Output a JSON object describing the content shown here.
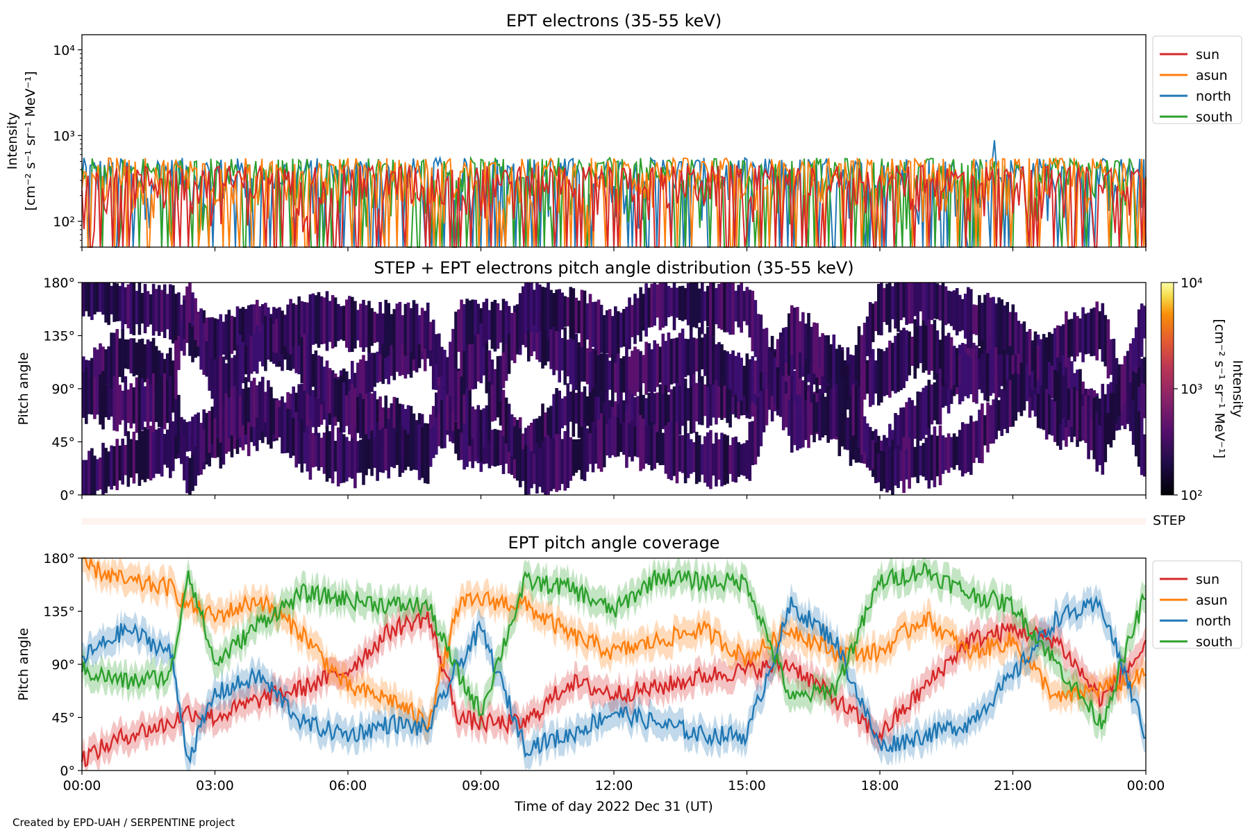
{
  "footer": "Created by EPD-UAH / SERPENTINE project",
  "xaxis": {
    "label": "Time of day 2022 Dec 31 (UT)",
    "ticks": [
      "00:00",
      "03:00",
      "06:00",
      "09:00",
      "12:00",
      "15:00",
      "18:00",
      "21:00",
      "00:00"
    ],
    "range_hours": [
      0,
      24
    ]
  },
  "chart_data": [
    {
      "type": "line",
      "title": "EPT electrons (35-55 keV)",
      "ylabel_line1": "Intensity",
      "ylabel_line2": "[cm⁻² s⁻¹ sr⁻¹ MeV⁻¹]",
      "yscale": "log",
      "ylim": [
        50,
        15000
      ],
      "yticks": [
        "10²",
        "10³",
        "10⁴"
      ],
      "legend": "top-right outside",
      "series": [
        {
          "name": "sun",
          "color": "#d62728",
          "typical_range": [
            50,
            450
          ]
        },
        {
          "name": "asun",
          "color": "#ff7f0e",
          "typical_range": [
            50,
            550
          ]
        },
        {
          "name": "north",
          "color": "#1f77b4",
          "typical_range": [
            50,
            550
          ]
        },
        {
          "name": "south",
          "color": "#2ca02c",
          "typical_range": [
            50,
            550
          ]
        }
      ],
      "peaks": [
        {
          "series": "north",
          "x_hours": 20.6,
          "y": 880
        }
      ]
    },
    {
      "type": "heatmap",
      "title": "STEP + EPT electrons pitch angle distribution (35-55 keV)",
      "ylabel": "Pitch angle",
      "ylim": [
        0,
        180
      ],
      "yticks": [
        "0°",
        "45°",
        "90°",
        "135°",
        "180°"
      ],
      "colorbar": {
        "label_line1": "Intensity",
        "label_line2": "[cm⁻² s⁻¹ sr⁻¹ MeV⁻¹]",
        "scale": "log",
        "range": [
          100,
          10000
        ],
        "ticks": [
          "10²",
          "10³",
          "10⁴"
        ],
        "colormap": "inferno"
      }
    },
    {
      "type": "heatmap",
      "title": "",
      "label": "STEP",
      "empty": true
    },
    {
      "type": "line",
      "title": "EPT pitch angle coverage",
      "ylabel": "Pitch angle",
      "ylim": [
        0,
        180
      ],
      "yticks": [
        "0°",
        "45°",
        "90°",
        "135°",
        "180°"
      ],
      "legend": "top-right outside",
      "series": [
        {
          "name": "sun",
          "color": "#d62728",
          "x": [
            0,
            1,
            2,
            2.4,
            3,
            4,
            5,
            6,
            7,
            7.8,
            8.5,
            9,
            10,
            11,
            12,
            13,
            14,
            15,
            16,
            17,
            18,
            19,
            20,
            21,
            22,
            23,
            24
          ],
          "y": [
            10,
            30,
            40,
            50,
            45,
            60,
            70,
            85,
            120,
            130,
            45,
            40,
            40,
            75,
            65,
            70,
            80,
            85,
            90,
            60,
            30,
            70,
            110,
            120,
            110,
            60,
            105
          ]
        },
        {
          "name": "asun",
          "color": "#ff7f0e",
          "x": [
            0,
            1,
            2,
            2.4,
            3,
            4,
            5,
            6,
            7,
            7.8,
            8.5,
            9,
            10,
            11,
            12,
            13,
            14,
            15,
            16,
            17,
            18,
            19,
            20,
            21,
            22,
            23,
            24
          ],
          "y": [
            175,
            160,
            155,
            140,
            130,
            145,
            115,
            70,
            60,
            40,
            140,
            145,
            140,
            115,
            100,
            110,
            120,
            95,
            120,
            100,
            100,
            130,
            100,
            110,
            60,
            70,
            80
          ]
        },
        {
          "name": "north",
          "color": "#1f77b4",
          "x": [
            0,
            1,
            2,
            2.4,
            3,
            4,
            5,
            6,
            7,
            7.8,
            8.5,
            9,
            10,
            11,
            12,
            13,
            14,
            15,
            16,
            17,
            18,
            19,
            20,
            21,
            22,
            23,
            24
          ],
          "y": [
            95,
            120,
            100,
            10,
            65,
            80,
            40,
            30,
            40,
            35,
            90,
            120,
            20,
            30,
            50,
            40,
            30,
            30,
            140,
            110,
            20,
            30,
            40,
            80,
            130,
            140,
            30
          ]
        },
        {
          "name": "south",
          "color": "#2ca02c",
          "x": [
            0,
            1,
            2,
            2.4,
            3,
            4,
            5,
            6,
            7,
            7.8,
            8.5,
            9,
            10,
            11,
            12,
            13,
            14,
            15,
            16,
            17,
            18,
            19,
            20,
            21,
            22,
            23,
            24
          ],
          "y": [
            85,
            75,
            80,
            170,
            90,
            125,
            150,
            145,
            140,
            140,
            80,
            50,
            160,
            155,
            135,
            165,
            160,
            160,
            60,
            70,
            160,
            170,
            150,
            140,
            90,
            40,
            150
          ]
        }
      ]
    }
  ]
}
